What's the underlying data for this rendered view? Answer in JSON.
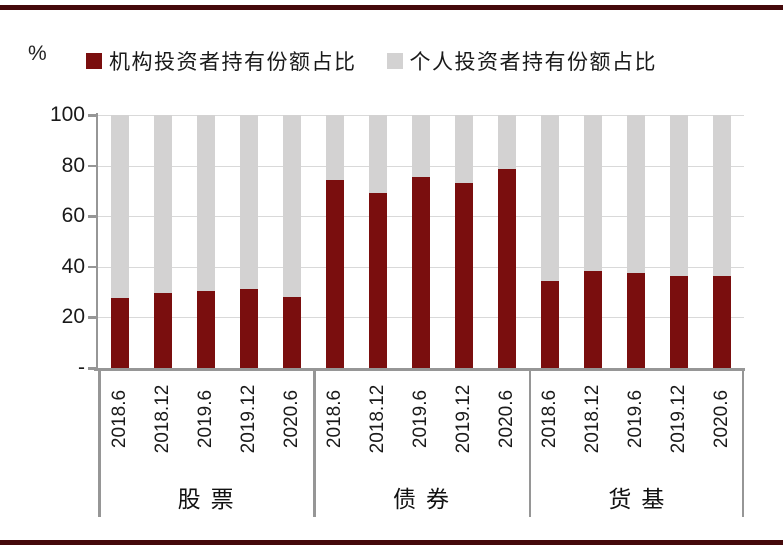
{
  "header": {
    "unit_label": "%"
  },
  "legend": [
    {
      "label": "机构投资者持有份额占比",
      "color": "#7A0E0E"
    },
    {
      "label": "个人投资者持有份额占比",
      "color": "#D3D2D2"
    }
  ],
  "chart_data": {
    "type": "bar",
    "stacked": true,
    "stack_total": 100,
    "unit": "%",
    "ylim": [
      0,
      100
    ],
    "yticks": [
      0,
      20,
      40,
      60,
      80,
      100
    ],
    "ytick_labels": [
      "-",
      "20",
      "40",
      "60",
      "80",
      "100"
    ],
    "grid": true,
    "legend_position": "top",
    "categories_per_group": [
      "2018.6",
      "2018.12",
      "2019.6",
      "2019.12",
      "2020.6"
    ],
    "groups": [
      {
        "name": "股票",
        "series": [
          {
            "name": "机构投资者持有份额占比",
            "values": [
              27.5,
              29.8,
              30.5,
              31.3,
              28.0
            ]
          },
          {
            "name": "个人投资者持有份额占比",
            "values": [
              72.5,
              70.2,
              69.5,
              68.7,
              72.0
            ]
          }
        ]
      },
      {
        "name": "债券",
        "series": [
          {
            "name": "机构投资者持有份额占比",
            "values": [
              74.2,
              69.0,
              75.5,
              73.3,
              78.6
            ]
          },
          {
            "name": "个人投资者持有份额占比",
            "values": [
              25.8,
              31.0,
              24.5,
              26.7,
              21.4
            ]
          }
        ]
      },
      {
        "name": "货基",
        "series": [
          {
            "name": "机构投资者持有份额占比",
            "values": [
              34.4,
              38.3,
              37.6,
              36.2,
              36.5
            ]
          },
          {
            "name": "个人投资者持有份额占比",
            "values": [
              65.6,
              61.7,
              62.4,
              63.8,
              63.5
            ]
          }
        ]
      }
    ],
    "series_colors": {
      "机构投资者持有份额占比": "#7A0E0E",
      "个人投资者持有份额占比": "#D3D2D2"
    }
  },
  "decor": {
    "rule_color": "#45090B",
    "axis_color": "#969696",
    "gridline_color": "#D9D9D9",
    "background": "#FFFFFF"
  }
}
